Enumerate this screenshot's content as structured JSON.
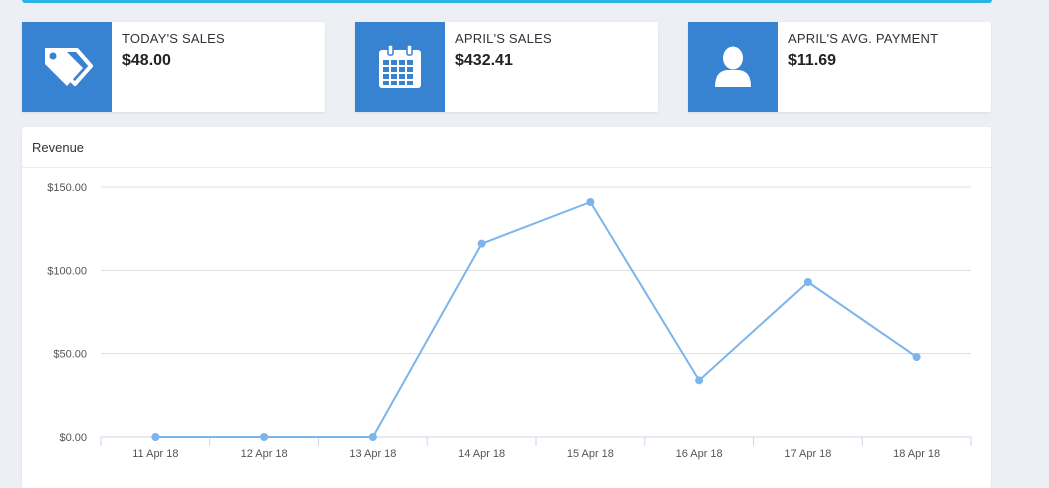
{
  "stats": [
    {
      "label": "TODAY'S SALES",
      "value": "$48.00",
      "icon": "price-tags-icon"
    },
    {
      "label": "APRIL'S SALES",
      "value": "$432.41",
      "icon": "calendar-icon"
    },
    {
      "label": "APRIL'S AVG. PAYMENT",
      "value": "$11.69",
      "icon": "user-icon"
    }
  ],
  "colors": {
    "accent": "#2ab4e6",
    "icon_box": "#3783d2",
    "line": "#7cb5ec"
  },
  "revenue": {
    "title": "Revenue"
  },
  "chart_data": {
    "type": "line",
    "categories": [
      "11 Apr 18",
      "12 Apr 18",
      "13 Apr 18",
      "14 Apr 18",
      "15 Apr 18",
      "16 Apr 18",
      "17 Apr 18",
      "18 Apr 18"
    ],
    "series": [
      {
        "values": [
          0,
          0,
          0,
          116,
          141,
          34,
          93,
          48
        ]
      }
    ],
    "yticks": [
      0,
      50,
      100,
      150
    ],
    "ytick_labels": [
      "$0.00",
      "$50.00",
      "$100.00",
      "$150.00"
    ],
    "ylim": [
      0,
      150
    ],
    "grid": true,
    "legend": "none"
  }
}
